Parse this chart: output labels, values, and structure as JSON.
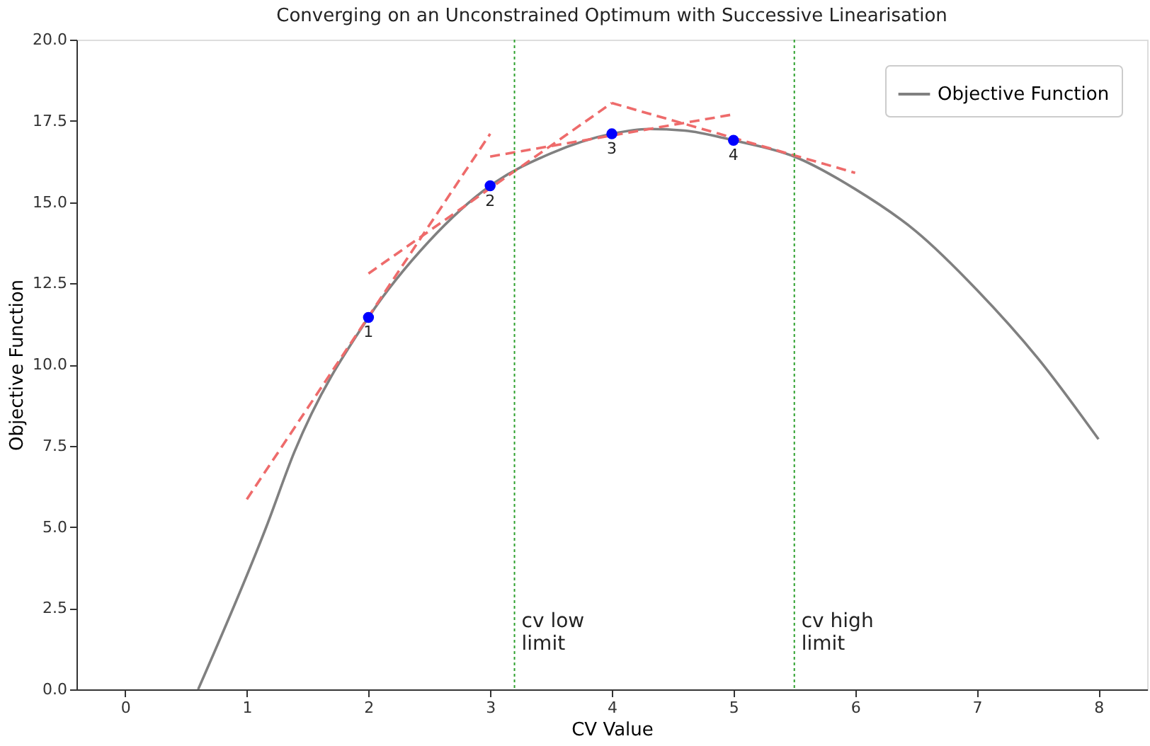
{
  "chart_data": {
    "type": "line",
    "title": "Converging on an Unconstrained Optimum with Successive Linearisation",
    "xlabel": "CV Value",
    "ylabel": "Objective Function",
    "xlim": [
      -0.4,
      8.4
    ],
    "ylim": [
      0,
      20
    ],
    "xticks": [
      0,
      1,
      2,
      3,
      4,
      5,
      6,
      7,
      8
    ],
    "yticks": [
      {
        "value": 0,
        "label": "0.0"
      },
      {
        "value": 2.5,
        "label": "2.5"
      },
      {
        "value": 5,
        "label": "5.0"
      },
      {
        "value": 7.5,
        "label": "7.5"
      },
      {
        "value": 10,
        "label": "10.0"
      },
      {
        "value": 12.5,
        "label": "12.5"
      },
      {
        "value": 15,
        "label": "15.0"
      },
      {
        "value": 17.5,
        "label": "17.5"
      },
      {
        "value": 20,
        "label": "20.0"
      }
    ],
    "grid": false,
    "legend": "top right",
    "series": [
      {
        "name": "Objective Function",
        "type": "line",
        "color": "#808080",
        "line_style": "solid",
        "x": [
          0.6,
          1.16,
          1.39,
          2,
          2.5,
          3,
          3.5,
          4,
          4.3,
          4.6,
          5,
          5.5,
          6,
          6.5,
          7,
          7.5,
          8
        ],
        "values": [
          0,
          5.0,
          7.3,
          11.45,
          13.8,
          15.5,
          16.5,
          17.1,
          17.25,
          17.2,
          16.9,
          16.4,
          15.4,
          14.1,
          12.3,
          10.2,
          7.7
        ]
      },
      {
        "type": "line",
        "color": "#ee6b6b",
        "line_style": "dashed",
        "x": [
          1,
          3
        ],
        "values": [
          5.85,
          17.1
        ]
      },
      {
        "type": "line",
        "color": "#ee6b6b",
        "line_style": "dashed",
        "x": [
          2,
          4
        ],
        "values": [
          12.8,
          18.05
        ]
      },
      {
        "type": "line",
        "color": "#ee6b6b",
        "line_style": "dashed",
        "x": [
          3,
          5
        ],
        "values": [
          16.4,
          17.7
        ]
      },
      {
        "type": "line",
        "color": "#ee6b6b",
        "line_style": "dashed",
        "x": [
          4,
          6
        ],
        "values": [
          18.05,
          15.9
        ]
      },
      {
        "type": "scatter",
        "color": "#0000ff",
        "marker": "circle",
        "x": [
          2,
          3,
          4,
          5
        ],
        "values": [
          11.45,
          15.5,
          17.1,
          16.9
        ]
      }
    ],
    "ref_lines": [
      {
        "axis": "x",
        "value": 3.2,
        "label": "cv low\nlimit",
        "color": "#2ca02c",
        "line_style": "dotted"
      },
      {
        "axis": "x",
        "value": 5.5,
        "label": "cv high\nlimit",
        "color": "#2ca02c",
        "line_style": "dotted"
      }
    ],
    "annotations": [
      {
        "text": "1",
        "x": 2,
        "y": 11.45
      },
      {
        "text": "2",
        "x": 3,
        "y": 15.5
      },
      {
        "text": "3",
        "x": 4,
        "y": 17.1
      },
      {
        "text": "4",
        "x": 5,
        "y": 16.9
      }
    ]
  }
}
